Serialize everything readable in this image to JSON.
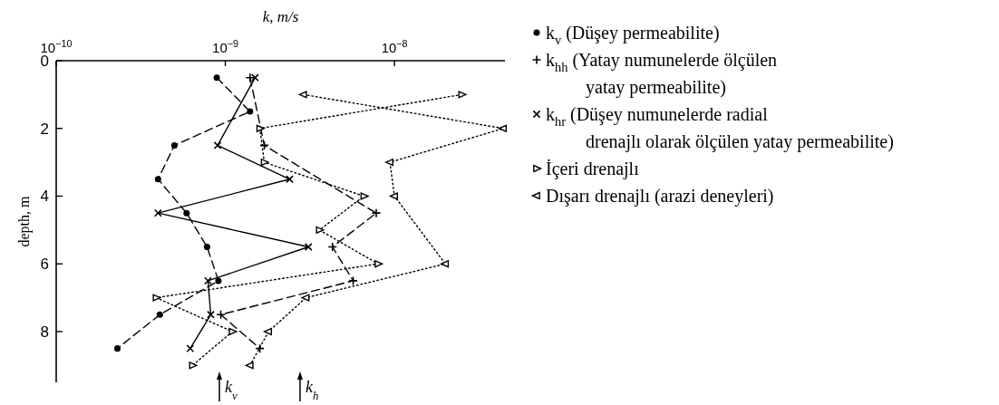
{
  "chart_data": {
    "type": "line",
    "xlabel": "k, m/s",
    "ylabel": "depth, m",
    "log": "x",
    "xlim": [
      1e-10,
      4.5e-08
    ],
    "xticks": [
      {
        "value": 1e-10,
        "label": "10$^{−10}$"
      },
      {
        "value": 1e-09,
        "label": "10$^{−9}$"
      },
      {
        "value": 1e-08,
        "label": "10$^{−8}$"
      }
    ],
    "ylim": [
      9.5,
      0
    ],
    "yticks": [
      0,
      2,
      4,
      6,
      8
    ],
    "legend": "right",
    "series": [
      {
        "name": "k$_{v}$ (Düşey permeabilite)",
        "color": "#000000",
        "marker": "circle",
        "line_style": "dashed",
        "x": [
          8.9e-10,
          1.4e-09,
          5e-10,
          4e-10,
          5.9e-10,
          7.8e-10,
          9.1e-10,
          4.1e-10,
          2.3e-10
        ],
        "values": [
          0.5,
          1.5,
          2.5,
          3.5,
          4.5,
          5.5,
          6.5,
          7.5,
          8.5
        ]
      },
      {
        "name": "k$_{hh}$ (Yatay numunelerde ölçülen\nyatay permeabilite)",
        "color": "#000000",
        "marker": "plus",
        "line_style": "dashed",
        "x": [
          1.4e-09,
          1.7e-09,
          7.8e-09,
          4.3e-09,
          5.7e-09,
          9.4e-10,
          1.6e-09
        ],
        "values": [
          0.5,
          2.5,
          4.5,
          5.5,
          6.5,
          7.5,
          8.5
        ]
      },
      {
        "name": "k$_{hr}$ (Düşey numunelerde radial\ndrenajlı olarak ölçülen yatay permeabilite)",
        "color": "#000000",
        "marker": "x",
        "line_style": "solid",
        "x": [
          1.5e-09,
          9e-10,
          2.4e-09,
          4e-10,
          3.1e-09,
          7.9e-10,
          8.2e-10,
          6.2e-10
        ],
        "values": [
          0.5,
          2.5,
          3.5,
          4.5,
          5.5,
          6.5,
          7.5,
          8.5
        ]
      },
      {
        "name": "İçeri drenajlı",
        "color": "#000000",
        "marker": "triangle-right",
        "line_style": "dotted",
        "x": [
          2.5e-08,
          1.6e-09,
          1.7e-09,
          6.6e-09,
          3.6e-09,
          8e-09,
          3.9e-10,
          1.1e-09,
          6.4e-10
        ],
        "values": [
          1.0,
          2.0,
          3.0,
          4.0,
          5.0,
          6.0,
          7.0,
          8.0,
          9.0
        ]
      },
      {
        "name": "Dışarı drenajlı (arazi deneyleri)",
        "color": "#000000",
        "marker": "triangle-left",
        "line_style": "dotted",
        "x": [
          2.9e-09,
          4.4e-08,
          9.4e-09,
          1e-08,
          2e-08,
          3e-09,
          1.8e-09,
          1.4e-09
        ],
        "values": [
          1.0,
          2.0,
          3.0,
          4.0,
          6.0,
          7.0,
          8.0,
          9.0
        ]
      }
    ],
    "annotations": [
      "k$_{v}$",
      "k$_{h}$"
    ]
  }
}
